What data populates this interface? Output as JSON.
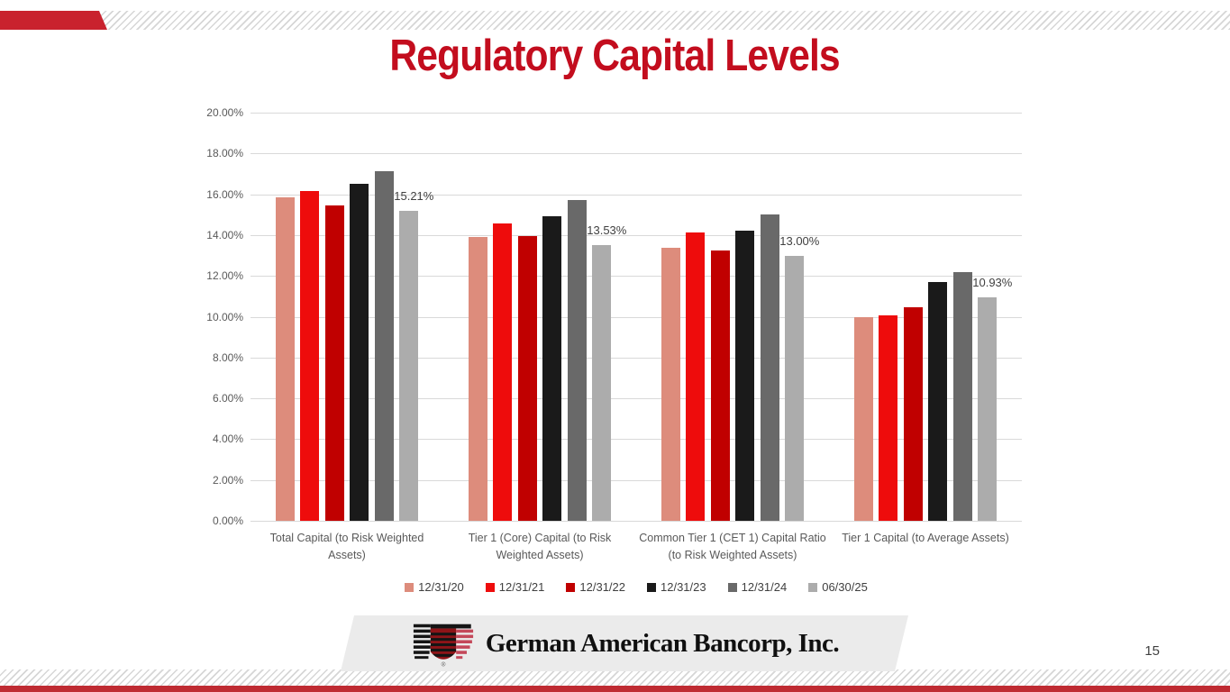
{
  "slide": {
    "title": "Regulatory Capital Levels",
    "page_number": "15",
    "footer": {
      "company": "German American Bancorp, Inc.",
      "registered_mark": "®"
    },
    "colors": {
      "title_red": "#C30D1E",
      "accent_red": "#C9222E",
      "bottom_bar_red": "#BF2B32",
      "banner_gray": "#EBEBEB",
      "gridline_gray": "#D9D9D9",
      "tick_text": "#595959",
      "data_label_text": "#404040"
    }
  },
  "chart_data": {
    "type": "bar",
    "title": "",
    "xlabel": "",
    "ylabel": "",
    "ylim": [
      0,
      20
    ],
    "ytick_step": 2,
    "ytick_suffix": "%",
    "grid": true,
    "legend_position": "bottom",
    "categories": [
      "Total Capital (to Risk Weighted Assets)",
      "Tier 1 (Core) Capital (to Risk Weighted Assets)",
      "Common Tier 1 (CET 1) Capital Ratio (to Risk Weighted Assets)",
      "Tier 1 Capital (to Average Assets)"
    ],
    "series": [
      {
        "name": "12/31/20",
        "color": "#DD8C7C",
        "values": [
          15.85,
          13.9,
          13.4,
          10.0
        ]
      },
      {
        "name": "12/31/21",
        "color": "#EE0C0C",
        "values": [
          16.15,
          14.57,
          14.15,
          10.07
        ]
      },
      {
        "name": "12/31/22",
        "color": "#C00000",
        "values": [
          15.45,
          13.95,
          13.25,
          10.45
        ]
      },
      {
        "name": "12/31/23",
        "color": "#1A1A1A",
        "values": [
          16.5,
          14.93,
          14.22,
          11.7
        ]
      },
      {
        "name": "12/31/24",
        "color": "#696969",
        "values": [
          17.15,
          15.7,
          15.0,
          12.2
        ]
      },
      {
        "name": "06/30/25",
        "color": "#ACACAC",
        "values": [
          15.21,
          13.53,
          13.0,
          10.93
        ],
        "labels": [
          "15.21%",
          "13.53%",
          "13.00%",
          "10.93%"
        ]
      }
    ]
  }
}
